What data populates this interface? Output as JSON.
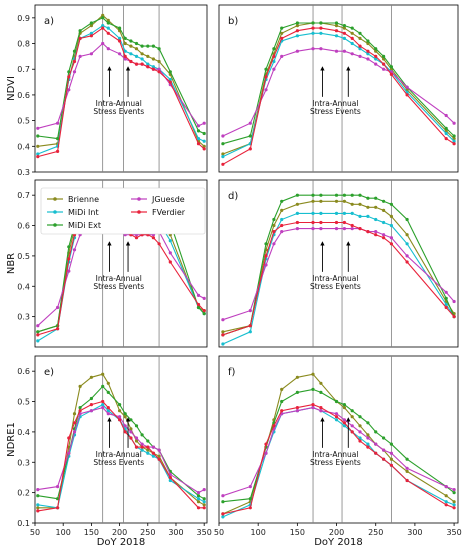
{
  "chart_data": [
    {
      "type": "line",
      "panel_label": "a)",
      "ylabel": "NDVI",
      "xlabel": "",
      "xlim": [
        50,
        355
      ],
      "ylim": [
        0.3,
        0.95
      ],
      "xticks": [],
      "yticks": [
        0.3,
        0.4,
        0.5,
        0.6,
        0.7,
        0.8,
        0.9
      ],
      "vlines": [
        170,
        207,
        270
      ],
      "annotation": [
        "Intra-Annual",
        "Stress Events"
      ],
      "arrows_x": [
        182,
        215
      ],
      "x": [
        55,
        90,
        110,
        120,
        130,
        150,
        170,
        180,
        200,
        210,
        220,
        230,
        240,
        250,
        260,
        270,
        290,
        340,
        350
      ],
      "series": [
        {
          "name": "Brienne",
          "color": "#8a8a1e",
          "values": [
            0.4,
            0.41,
            0.66,
            0.75,
            0.84,
            0.87,
            0.91,
            0.89,
            0.85,
            0.8,
            0.79,
            0.78,
            0.76,
            0.75,
            0.74,
            0.73,
            0.68,
            0.42,
            0.4
          ]
        },
        {
          "name": "MiDi Int",
          "color": "#17becf",
          "values": [
            0.37,
            0.4,
            0.66,
            0.74,
            0.82,
            0.84,
            0.87,
            0.86,
            0.82,
            0.77,
            0.76,
            0.75,
            0.74,
            0.72,
            0.71,
            0.7,
            0.66,
            0.43,
            0.42
          ]
        },
        {
          "name": "MiDi Ext",
          "color": "#2ca02c",
          "values": [
            0.44,
            0.43,
            0.69,
            0.77,
            0.85,
            0.88,
            0.9,
            0.88,
            0.86,
            0.82,
            0.81,
            0.8,
            0.79,
            0.79,
            0.79,
            0.78,
            0.69,
            0.46,
            0.45
          ]
        },
        {
          "name": "JGuesde",
          "color": "#bf3fbf",
          "values": [
            0.47,
            0.49,
            0.62,
            0.69,
            0.75,
            0.76,
            0.8,
            0.78,
            0.76,
            0.74,
            0.73,
            0.72,
            0.72,
            0.71,
            0.7,
            0.7,
            0.64,
            0.48,
            0.49
          ]
        },
        {
          "name": "FVerdier",
          "color": "#e8223b",
          "values": [
            0.36,
            0.38,
            0.67,
            0.73,
            0.82,
            0.83,
            0.86,
            0.84,
            0.81,
            0.75,
            0.73,
            0.72,
            0.72,
            0.71,
            0.7,
            0.69,
            0.65,
            0.41,
            0.39
          ]
        }
      ]
    },
    {
      "type": "line",
      "panel_label": "b)",
      "ylabel": "",
      "xlabel": "",
      "xlim": [
        50,
        355
      ],
      "ylim": [
        0.3,
        0.95
      ],
      "xticks": [],
      "yticks": [],
      "vlines": [
        170,
        207,
        270
      ],
      "annotation": [
        "Intra-Annual",
        "Stress Events"
      ],
      "arrows_x": [
        182,
        215
      ],
      "x": [
        55,
        90,
        110,
        120,
        130,
        150,
        170,
        180,
        200,
        210,
        220,
        230,
        240,
        250,
        260,
        270,
        290,
        340,
        350
      ],
      "series": [
        {
          "name": "Brienne",
          "color": "#8a8a1e",
          "values": [
            0.37,
            0.41,
            0.68,
            0.76,
            0.84,
            0.87,
            0.88,
            0.88,
            0.87,
            0.86,
            0.84,
            0.82,
            0.8,
            0.77,
            0.74,
            0.7,
            0.62,
            0.46,
            0.43
          ]
        },
        {
          "name": "MiDi Int",
          "color": "#17becf",
          "values": [
            0.36,
            0.41,
            0.66,
            0.73,
            0.81,
            0.83,
            0.84,
            0.84,
            0.83,
            0.82,
            0.8,
            0.78,
            0.76,
            0.74,
            0.72,
            0.69,
            0.61,
            0.45,
            0.42
          ]
        },
        {
          "name": "MiDi Ext",
          "color": "#2ca02c",
          "values": [
            0.41,
            0.44,
            0.7,
            0.78,
            0.86,
            0.88,
            0.88,
            0.88,
            0.88,
            0.87,
            0.86,
            0.84,
            0.81,
            0.78,
            0.75,
            0.71,
            0.63,
            0.47,
            0.44
          ]
        },
        {
          "name": "JGuesde",
          "color": "#bf3fbf",
          "values": [
            0.44,
            0.49,
            0.62,
            0.7,
            0.75,
            0.77,
            0.78,
            0.78,
            0.77,
            0.77,
            0.76,
            0.75,
            0.74,
            0.72,
            0.7,
            0.69,
            0.63,
            0.52,
            0.49
          ]
        },
        {
          "name": "FVerdier",
          "color": "#e8223b",
          "values": [
            0.33,
            0.39,
            0.67,
            0.75,
            0.82,
            0.85,
            0.86,
            0.86,
            0.85,
            0.84,
            0.82,
            0.79,
            0.77,
            0.75,
            0.72,
            0.68,
            0.6,
            0.43,
            0.41
          ]
        }
      ]
    },
    {
      "type": "line",
      "panel_label": "c)",
      "ylabel": "NBR",
      "xlabel": "",
      "xlim": [
        50,
        355
      ],
      "ylim": [
        0.2,
        0.75
      ],
      "xticks": [],
      "yticks": [
        0.3,
        0.4,
        0.5,
        0.6,
        0.7
      ],
      "vlines": [
        170,
        207,
        270
      ],
      "annotation": [
        "Intra-Annual",
        "Stress Events"
      ],
      "arrows_x": [
        182,
        215
      ],
      "x": [
        55,
        90,
        110,
        120,
        130,
        150,
        170,
        180,
        200,
        210,
        220,
        230,
        240,
        250,
        260,
        270,
        290,
        340,
        350
      ],
      "series": [
        {
          "name": "Brienne",
          "color": "#8a8a1e",
          "values": [
            0.25,
            0.27,
            0.51,
            0.59,
            0.66,
            0.69,
            0.7,
            0.69,
            0.68,
            0.66,
            0.66,
            0.65,
            0.64,
            0.63,
            0.64,
            0.64,
            0.57,
            0.33,
            0.32
          ]
        },
        {
          "name": "MiDi Int",
          "color": "#17becf",
          "values": [
            0.22,
            0.26,
            0.48,
            0.56,
            0.62,
            0.64,
            0.66,
            0.65,
            0.65,
            0.63,
            0.63,
            0.62,
            0.62,
            0.61,
            0.61,
            0.61,
            0.55,
            0.33,
            0.31
          ]
        },
        {
          "name": "MiDi Ext",
          "color": "#2ca02c",
          "values": [
            0.25,
            0.27,
            0.53,
            0.6,
            0.67,
            0.69,
            0.71,
            0.71,
            0.7,
            0.7,
            0.7,
            0.69,
            0.69,
            0.69,
            0.69,
            0.68,
            0.61,
            0.33,
            0.31
          ]
        },
        {
          "name": "JGuesde",
          "color": "#bf3fbf",
          "values": [
            0.27,
            0.33,
            0.45,
            0.52,
            0.57,
            0.59,
            0.59,
            0.58,
            0.58,
            0.57,
            0.57,
            0.57,
            0.57,
            0.57,
            0.57,
            0.58,
            0.51,
            0.37,
            0.36
          ]
        },
        {
          "name": "FVerdier",
          "color": "#e8223b",
          "values": [
            0.24,
            0.26,
            0.49,
            0.57,
            0.59,
            0.61,
            0.62,
            0.61,
            0.61,
            0.58,
            0.57,
            0.56,
            0.57,
            0.57,
            0.56,
            0.54,
            0.48,
            0.34,
            0.32
          ]
        }
      ]
    },
    {
      "type": "line",
      "panel_label": "d)",
      "ylabel": "",
      "xlabel": "",
      "xlim": [
        50,
        355
      ],
      "ylim": [
        0.2,
        0.75
      ],
      "xticks": [],
      "yticks": [],
      "vlines": [
        170,
        207,
        270
      ],
      "annotation": [
        "Intra-Annual",
        "Stress Events"
      ],
      "arrows_x": [
        182,
        215
      ],
      "x": [
        55,
        90,
        110,
        120,
        130,
        150,
        170,
        180,
        200,
        210,
        220,
        230,
        240,
        250,
        260,
        270,
        290,
        340,
        350
      ],
      "series": [
        {
          "name": "Brienne",
          "color": "#8a8a1e",
          "values": [
            0.25,
            0.27,
            0.52,
            0.6,
            0.65,
            0.67,
            0.68,
            0.68,
            0.68,
            0.68,
            0.67,
            0.67,
            0.66,
            0.66,
            0.65,
            0.63,
            0.57,
            0.35,
            0.31
          ]
        },
        {
          "name": "MiDi Int",
          "color": "#17becf",
          "values": [
            0.21,
            0.25,
            0.49,
            0.57,
            0.62,
            0.64,
            0.64,
            0.64,
            0.64,
            0.64,
            0.64,
            0.63,
            0.63,
            0.62,
            0.61,
            0.6,
            0.54,
            0.34,
            0.3
          ]
        },
        {
          "name": "MiDi Ext",
          "color": "#2ca02c",
          "values": [
            0.24,
            0.27,
            0.54,
            0.62,
            0.68,
            0.7,
            0.7,
            0.7,
            0.7,
            0.7,
            0.7,
            0.7,
            0.69,
            0.69,
            0.68,
            0.67,
            0.62,
            0.36,
            0.3
          ]
        },
        {
          "name": "JGuesde",
          "color": "#bf3fbf",
          "values": [
            0.29,
            0.32,
            0.47,
            0.54,
            0.58,
            0.59,
            0.59,
            0.59,
            0.59,
            0.59,
            0.59,
            0.59,
            0.58,
            0.58,
            0.57,
            0.56,
            0.5,
            0.38,
            0.35
          ]
        },
        {
          "name": "FVerdier",
          "color": "#e8223b",
          "values": [
            0.24,
            0.27,
            0.5,
            0.58,
            0.6,
            0.61,
            0.61,
            0.61,
            0.61,
            0.61,
            0.6,
            0.59,
            0.58,
            0.57,
            0.56,
            0.54,
            0.48,
            0.33,
            0.3
          ]
        }
      ]
    },
    {
      "type": "line",
      "panel_label": "e)",
      "ylabel": "NDRE1",
      "xlabel": "DoY 2018",
      "xlim": [
        50,
        355
      ],
      "ylim": [
        0.1,
        0.65
      ],
      "xticks": [
        50,
        100,
        150,
        200,
        250,
        300,
        350
      ],
      "yticks": [
        0.1,
        0.2,
        0.3,
        0.4,
        0.5,
        0.6
      ],
      "vlines": [
        170,
        207,
        270
      ],
      "annotation": [
        "Intra-Annual",
        "Stress Events"
      ],
      "arrows_x": [
        182,
        215
      ],
      "x": [
        55,
        90,
        110,
        120,
        130,
        150,
        170,
        180,
        200,
        210,
        220,
        230,
        240,
        250,
        260,
        270,
        290,
        340,
        350
      ],
      "series": [
        {
          "name": "Brienne",
          "color": "#8a8a1e",
          "values": [
            0.15,
            0.15,
            0.35,
            0.46,
            0.55,
            0.58,
            0.59,
            0.56,
            0.47,
            0.45,
            0.41,
            0.37,
            0.35,
            0.34,
            0.33,
            0.32,
            0.25,
            0.17,
            0.16
          ]
        },
        {
          "name": "MiDi Int",
          "color": "#17becf",
          "values": [
            0.16,
            0.15,
            0.32,
            0.39,
            0.45,
            0.47,
            0.49,
            0.47,
            0.44,
            0.41,
            0.38,
            0.35,
            0.34,
            0.33,
            0.32,
            0.31,
            0.24,
            0.18,
            0.17
          ]
        },
        {
          "name": "MiDi Ext",
          "color": "#2ca02c",
          "values": [
            0.19,
            0.18,
            0.33,
            0.41,
            0.48,
            0.51,
            0.55,
            0.53,
            0.49,
            0.46,
            0.44,
            0.42,
            0.39,
            0.37,
            0.35,
            0.34,
            0.27,
            0.19,
            0.18
          ]
        },
        {
          "name": "JGuesde",
          "color": "#bf3fbf",
          "values": [
            0.21,
            0.22,
            0.33,
            0.4,
            0.46,
            0.47,
            0.48,
            0.46,
            0.45,
            0.42,
            0.4,
            0.38,
            0.36,
            0.35,
            0.35,
            0.34,
            0.26,
            0.2,
            0.21
          ]
        },
        {
          "name": "FVerdier",
          "color": "#e8223b",
          "values": [
            0.14,
            0.15,
            0.38,
            0.43,
            0.47,
            0.49,
            0.5,
            0.48,
            0.44,
            0.4,
            0.38,
            0.35,
            0.35,
            0.35,
            0.33,
            0.31,
            0.25,
            0.15,
            0.15
          ]
        }
      ]
    },
    {
      "type": "line",
      "panel_label": "f)",
      "ylabel": "",
      "xlabel": "DoY 2018",
      "xlim": [
        50,
        355
      ],
      "ylim": [
        0.1,
        0.65
      ],
      "xticks": [
        50,
        100,
        150,
        200,
        250,
        300,
        350
      ],
      "yticks": [],
      "vlines": [
        170,
        207,
        270
      ],
      "annotation": [
        "Intra-Annual",
        "Stress Events"
      ],
      "arrows_x": [
        182,
        215
      ],
      "x": [
        55,
        90,
        110,
        120,
        130,
        150,
        170,
        180,
        200,
        210,
        220,
        230,
        240,
        250,
        260,
        270,
        290,
        340,
        350
      ],
      "series": [
        {
          "name": "Brienne",
          "color": "#8a8a1e",
          "values": [
            0.13,
            0.17,
            0.35,
            0.44,
            0.54,
            0.58,
            0.59,
            0.56,
            0.5,
            0.48,
            0.45,
            0.42,
            0.39,
            0.36,
            0.34,
            0.31,
            0.27,
            0.19,
            0.17
          ]
        },
        {
          "name": "MiDi Int",
          "color": "#17becf",
          "values": [
            0.12,
            0.16,
            0.33,
            0.4,
            0.46,
            0.47,
            0.48,
            0.47,
            0.44,
            0.42,
            0.4,
            0.38,
            0.36,
            0.33,
            0.31,
            0.29,
            0.24,
            0.17,
            0.16
          ]
        },
        {
          "name": "MiDi Ext",
          "color": "#2ca02c",
          "values": [
            0.17,
            0.18,
            0.35,
            0.43,
            0.5,
            0.53,
            0.54,
            0.53,
            0.5,
            0.49,
            0.47,
            0.45,
            0.43,
            0.4,
            0.38,
            0.36,
            0.31,
            0.22,
            0.2
          ]
        },
        {
          "name": "JGuesde",
          "color": "#bf3fbf",
          "values": [
            0.19,
            0.22,
            0.33,
            0.41,
            0.46,
            0.47,
            0.48,
            0.47,
            0.46,
            0.44,
            0.42,
            0.4,
            0.38,
            0.36,
            0.34,
            0.33,
            0.28,
            0.22,
            0.21
          ]
        },
        {
          "name": "FVerdier",
          "color": "#e8223b",
          "values": [
            0.13,
            0.15,
            0.36,
            0.42,
            0.47,
            0.48,
            0.49,
            0.48,
            0.45,
            0.43,
            0.4,
            0.37,
            0.35,
            0.33,
            0.31,
            0.29,
            0.24,
            0.16,
            0.15
          ]
        }
      ]
    }
  ]
}
